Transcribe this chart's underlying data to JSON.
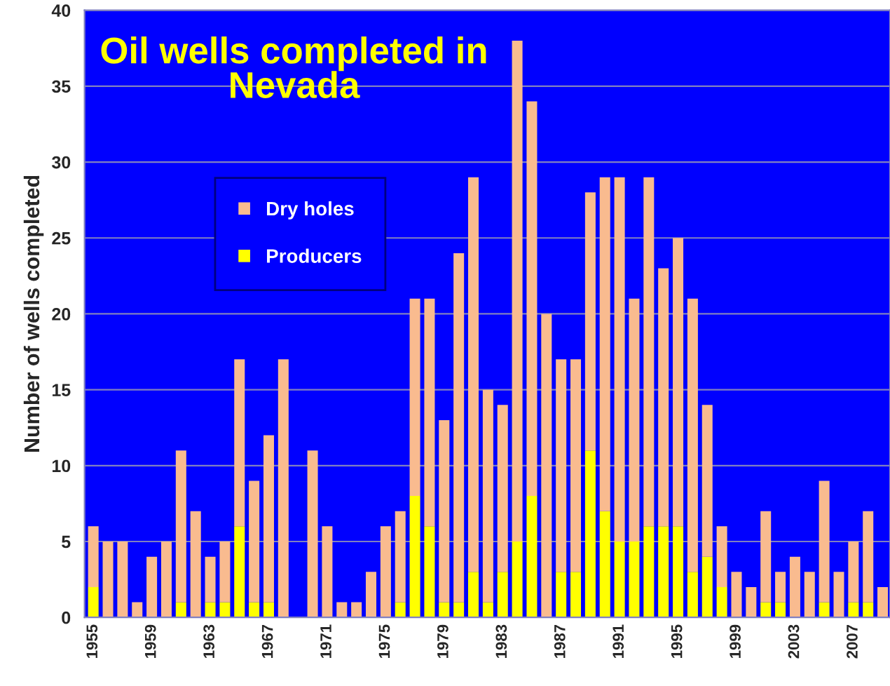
{
  "chart_data": {
    "type": "bar",
    "title": "Oil wells completed in Nevada",
    "ylabel": "Number of wells completed",
    "categories": [
      "1955",
      null,
      null,
      null,
      "1959",
      null,
      null,
      null,
      "1963",
      null,
      null,
      null,
      "1967",
      null,
      null,
      null,
      "1971",
      null,
      null,
      null,
      "1975",
      null,
      null,
      null,
      "1979",
      null,
      null,
      null,
      "1983",
      null,
      null,
      null,
      "1987",
      null,
      null,
      null,
      "1991",
      null,
      null,
      null,
      "1995",
      null,
      null,
      null,
      "1999",
      null,
      null,
      null,
      "2003",
      null,
      null,
      null,
      "2007",
      null,
      null
    ],
    "stacked": true,
    "series": [
      {
        "name": "Producers",
        "color": "#ffff00",
        "values": [
          2,
          0,
          0,
          0,
          0,
          0,
          1,
          0,
          1,
          1,
          6,
          1,
          1,
          0,
          0,
          0,
          0,
          0,
          0,
          0,
          0,
          1,
          8,
          6,
          1,
          1,
          3,
          1,
          3,
          5,
          8,
          0,
          3,
          3,
          11,
          7,
          5,
          5,
          6,
          6,
          6,
          3,
          4,
          2,
          0,
          0,
          1,
          1,
          0,
          0,
          1,
          0,
          1,
          1,
          0
        ]
      },
      {
        "name": "Dry holes",
        "color": "#f9bb8f",
        "values": [
          4,
          5,
          5,
          1,
          4,
          5,
          10,
          7,
          3,
          4,
          11,
          8,
          11,
          17,
          0,
          11,
          6,
          1,
          1,
          3,
          6,
          6,
          13,
          15,
          12,
          23,
          26,
          14,
          11,
          33,
          26,
          20,
          14,
          14,
          17,
          22,
          24,
          16,
          23,
          17,
          19,
          18,
          10,
          4,
          3,
          2,
          6,
          2,
          4,
          3,
          8,
          3,
          4,
          6,
          2
        ]
      }
    ],
    "ylim": [
      0,
      40
    ],
    "yticks": [
      0,
      5,
      10,
      15,
      20,
      25,
      30,
      35,
      40
    ],
    "grid": "y",
    "legend": "top left"
  }
}
